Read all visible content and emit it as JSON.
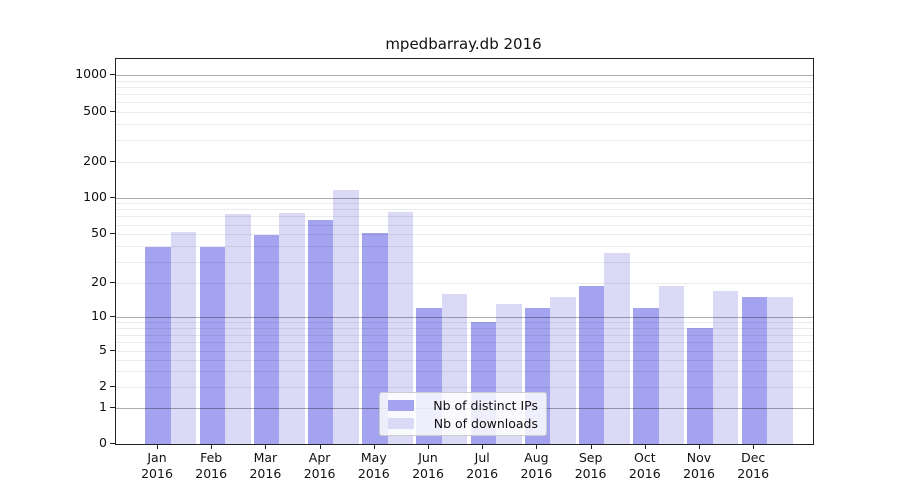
{
  "chart_data": {
    "type": "bar",
    "title": "mpedbarray.db 2016",
    "categories": [
      "Jan",
      "Feb",
      "Mar",
      "Apr",
      "May",
      "Jun",
      "Jul",
      "Aug",
      "Sep",
      "Oct",
      "Nov",
      "Dec"
    ],
    "year": "2016",
    "series": [
      {
        "name": "Nb of distinct IPs",
        "color": "#a3a3f0",
        "values": [
          39,
          39,
          49,
          65,
          51,
          12,
          9,
          12,
          19,
          12,
          8,
          15
        ]
      },
      {
        "name": "Nb of downloads",
        "color": "#dadaf7",
        "values": [
          52,
          73,
          75,
          115,
          76,
          16,
          13,
          15,
          35,
          19,
          17,
          15
        ]
      }
    ],
    "yscale": "symlog",
    "ylim": [
      0,
      1400
    ],
    "yticks": [
      0,
      1,
      2,
      5,
      10,
      20,
      50,
      100,
      200,
      500,
      1000
    ],
    "minor_gridlines": [
      3,
      4,
      6,
      7,
      8,
      9,
      30,
      40,
      60,
      70,
      80,
      90,
      300,
      400,
      600,
      700,
      800,
      900
    ],
    "major_gridlines": [
      1,
      10,
      100,
      1000
    ],
    "xlabel": "",
    "ylabel": "",
    "grid": true,
    "grid_above_bars": true,
    "legend_position": "lower center-right"
  }
}
